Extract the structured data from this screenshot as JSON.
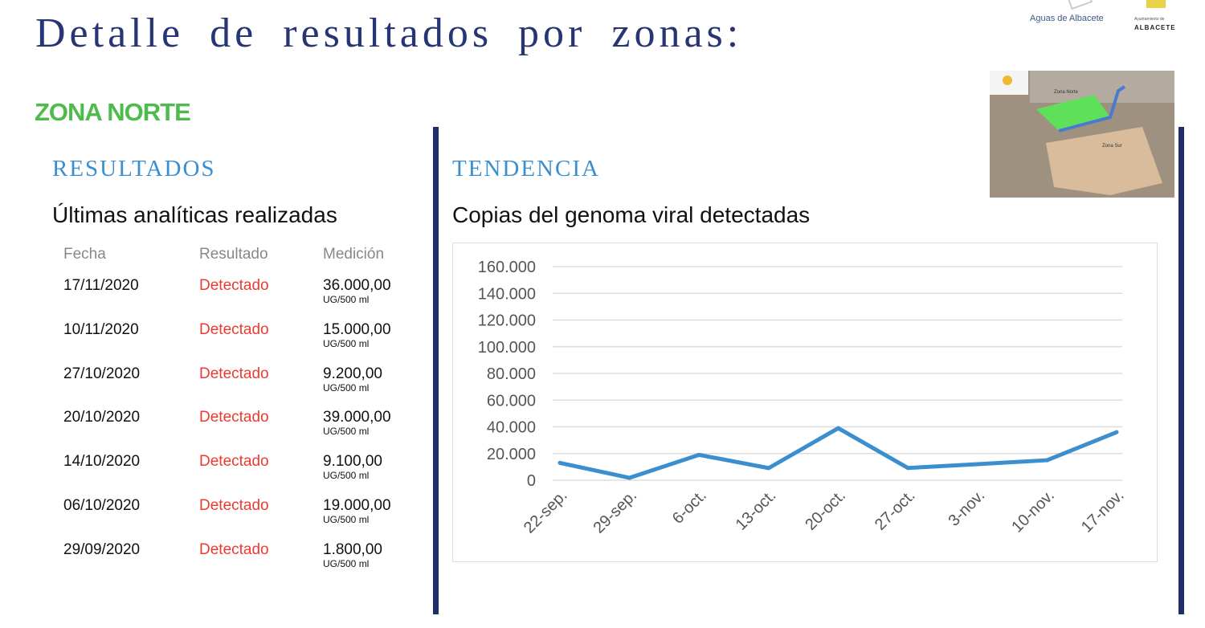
{
  "header": {
    "title": "Detalle de resultados por zonas:",
    "logo_aguas": "Aguas de Albacete",
    "logo_ayto_small": "Ayuntamiento de",
    "logo_ayto": "ALBACETE"
  },
  "zone": {
    "name": "ZONA NORTE",
    "color": "#4fbb4c"
  },
  "map": {
    "labels": [
      "Zona Norte",
      "Zona Sur"
    ],
    "icon": "zone-map-image"
  },
  "results": {
    "section": "RESULTADOS",
    "subtitle": "Últimas analíticas realizadas",
    "columns": [
      "Fecha",
      "Resultado",
      "Medición"
    ],
    "rows": [
      {
        "date": "17/11/2020",
        "result": "Detectado",
        "value": "36.000,00",
        "unit": "UG/500 ml"
      },
      {
        "date": "10/11/2020",
        "result": "Detectado",
        "value": "15.000,00",
        "unit": "UG/500 ml"
      },
      {
        "date": "27/10/2020",
        "result": "Detectado",
        "value": "9.200,00",
        "unit": "UG/500 ml"
      },
      {
        "date": "20/10/2020",
        "result": "Detectado",
        "value": "39.000,00",
        "unit": "UG/500 ml"
      },
      {
        "date": "14/10/2020",
        "result": "Detectado",
        "value": "9.100,00",
        "unit": "UG/500 ml"
      },
      {
        "date": "06/10/2020",
        "result": "Detectado",
        "value": "19.000,00",
        "unit": "UG/500 ml"
      },
      {
        "date": "29/09/2020",
        "result": "Detectado",
        "value": "1.800,00",
        "unit": "UG/500 ml"
      }
    ]
  },
  "trend": {
    "section": "TENDENCIA",
    "subtitle": "Copias del genoma viral detectadas"
  },
  "chart_data": {
    "type": "line",
    "categories": [
      "22-sep.",
      "29-sep.",
      "6-oct.",
      "13-oct.",
      "20-oct.",
      "27-oct.",
      "3-nov.",
      "10-nov.",
      "17-nov."
    ],
    "values": [
      13000,
      1800,
      19000,
      9100,
      39000,
      9200,
      12000,
      15000,
      36000
    ],
    "ylim": [
      0,
      160000
    ],
    "yticks": [
      "0",
      "20.000",
      "40.000",
      "60.000",
      "80.000",
      "100.000",
      "120.000",
      "140.000",
      "160.000"
    ],
    "grid": true,
    "color": "#3b8fcf"
  }
}
